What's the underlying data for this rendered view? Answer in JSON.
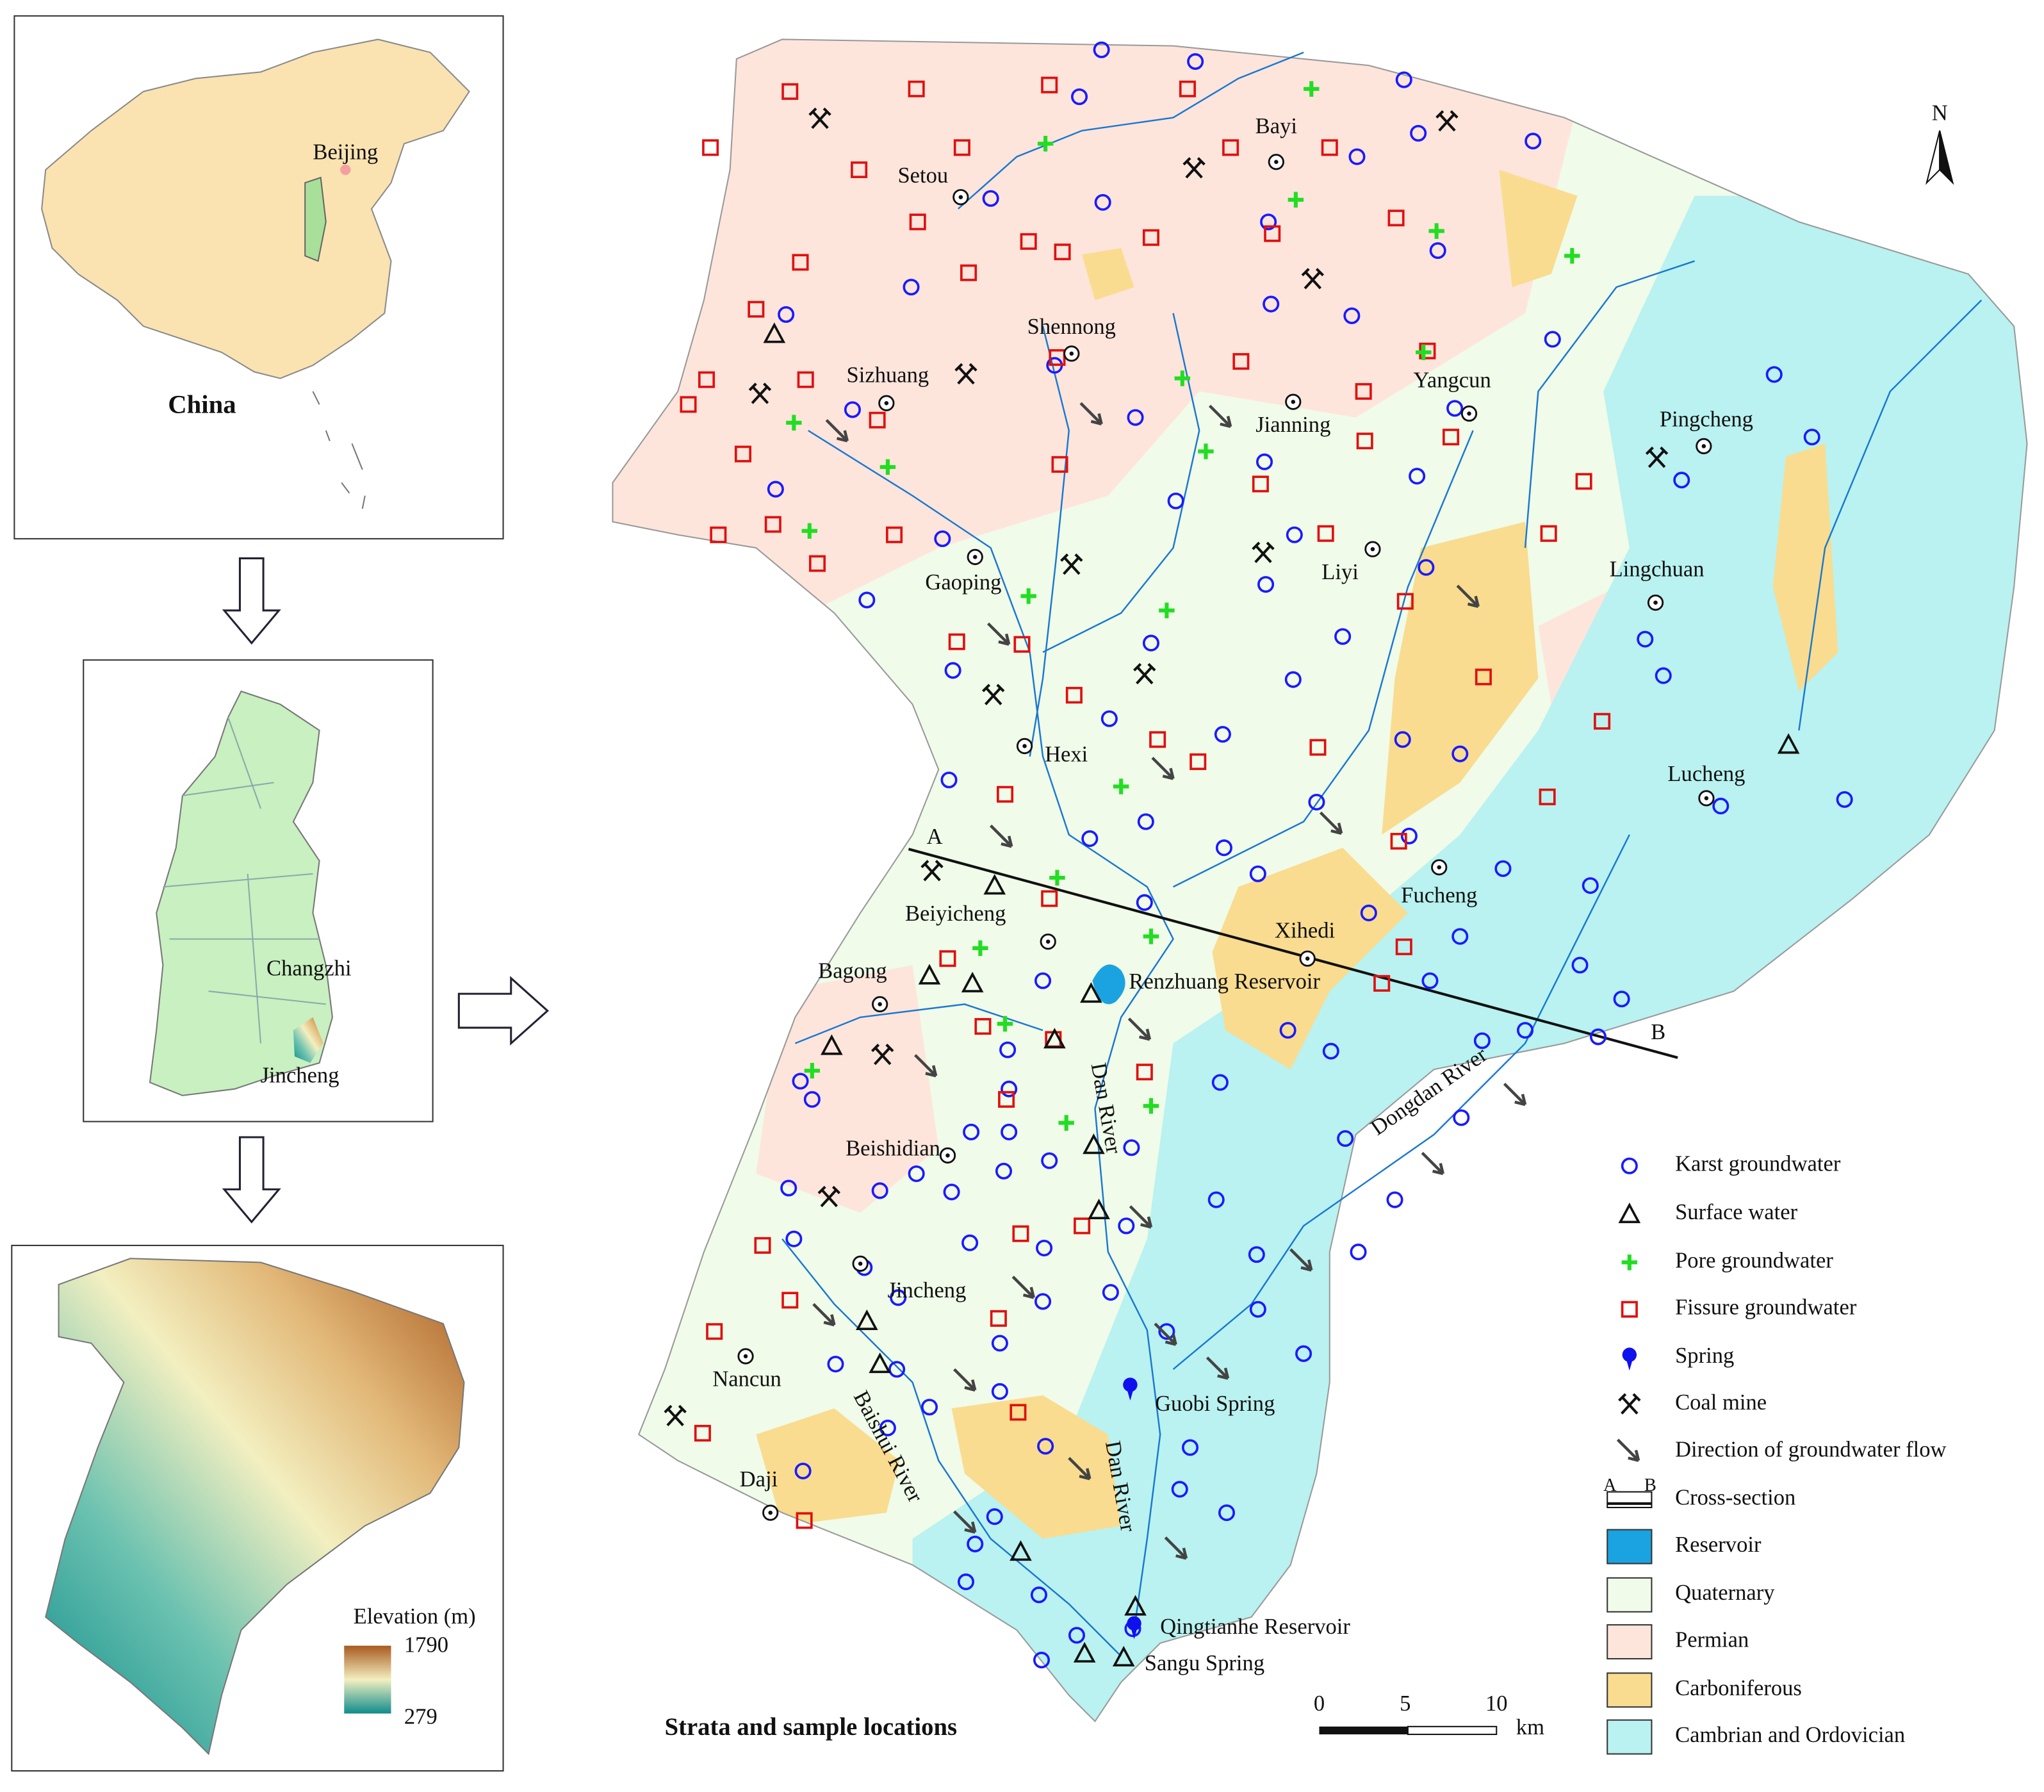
{
  "china_inset": {
    "city": "Beijing",
    "country": "China"
  },
  "province_inset": {
    "labels": [
      "Changzhi",
      "Jincheng"
    ]
  },
  "elevation_inset": {
    "legend_title": "Elevation (m)",
    "max": 1790,
    "min": 279
  },
  "main_map": {
    "title": "Strata and sample locations",
    "north": "N",
    "places": [
      "Setou",
      "Bayi",
      "Shennong",
      "Sizhuang",
      "Jianning",
      "Yangcun",
      "Pingcheng",
      "Gaoping",
      "Liyi",
      "Lingchuan",
      "Hexi",
      "Lucheng",
      "Beiyicheng",
      "Fucheng",
      "Xihedi",
      "Bagong",
      "Beishidian",
      "Jincheng",
      "Nancun",
      "Daji"
    ],
    "water_labels": [
      "Renzhuang Reservoir",
      "Guobi Spring",
      "Qingtianhe Reservoir",
      "Sangu Spring"
    ],
    "rivers": [
      "Dan River",
      "Dongdan River",
      "Baishui River",
      "Dan River"
    ],
    "cross_section": [
      "A",
      "B"
    ],
    "scale_bar": {
      "ticks": [
        0,
        5,
        10
      ],
      "unit": "km"
    }
  },
  "legend": {
    "items": [
      "Karst groundwater",
      "Surface water",
      "Pore groundwater",
      "Fissure groundwater",
      "Spring",
      "Coal mine",
      "Direction of groundwater flow",
      "Cross-section",
      "Reservoir",
      "Quaternary",
      "Permian",
      "Carboniferous",
      "Cambrian and Ordovician"
    ],
    "cross_section_ends": [
      "A",
      "B"
    ]
  }
}
